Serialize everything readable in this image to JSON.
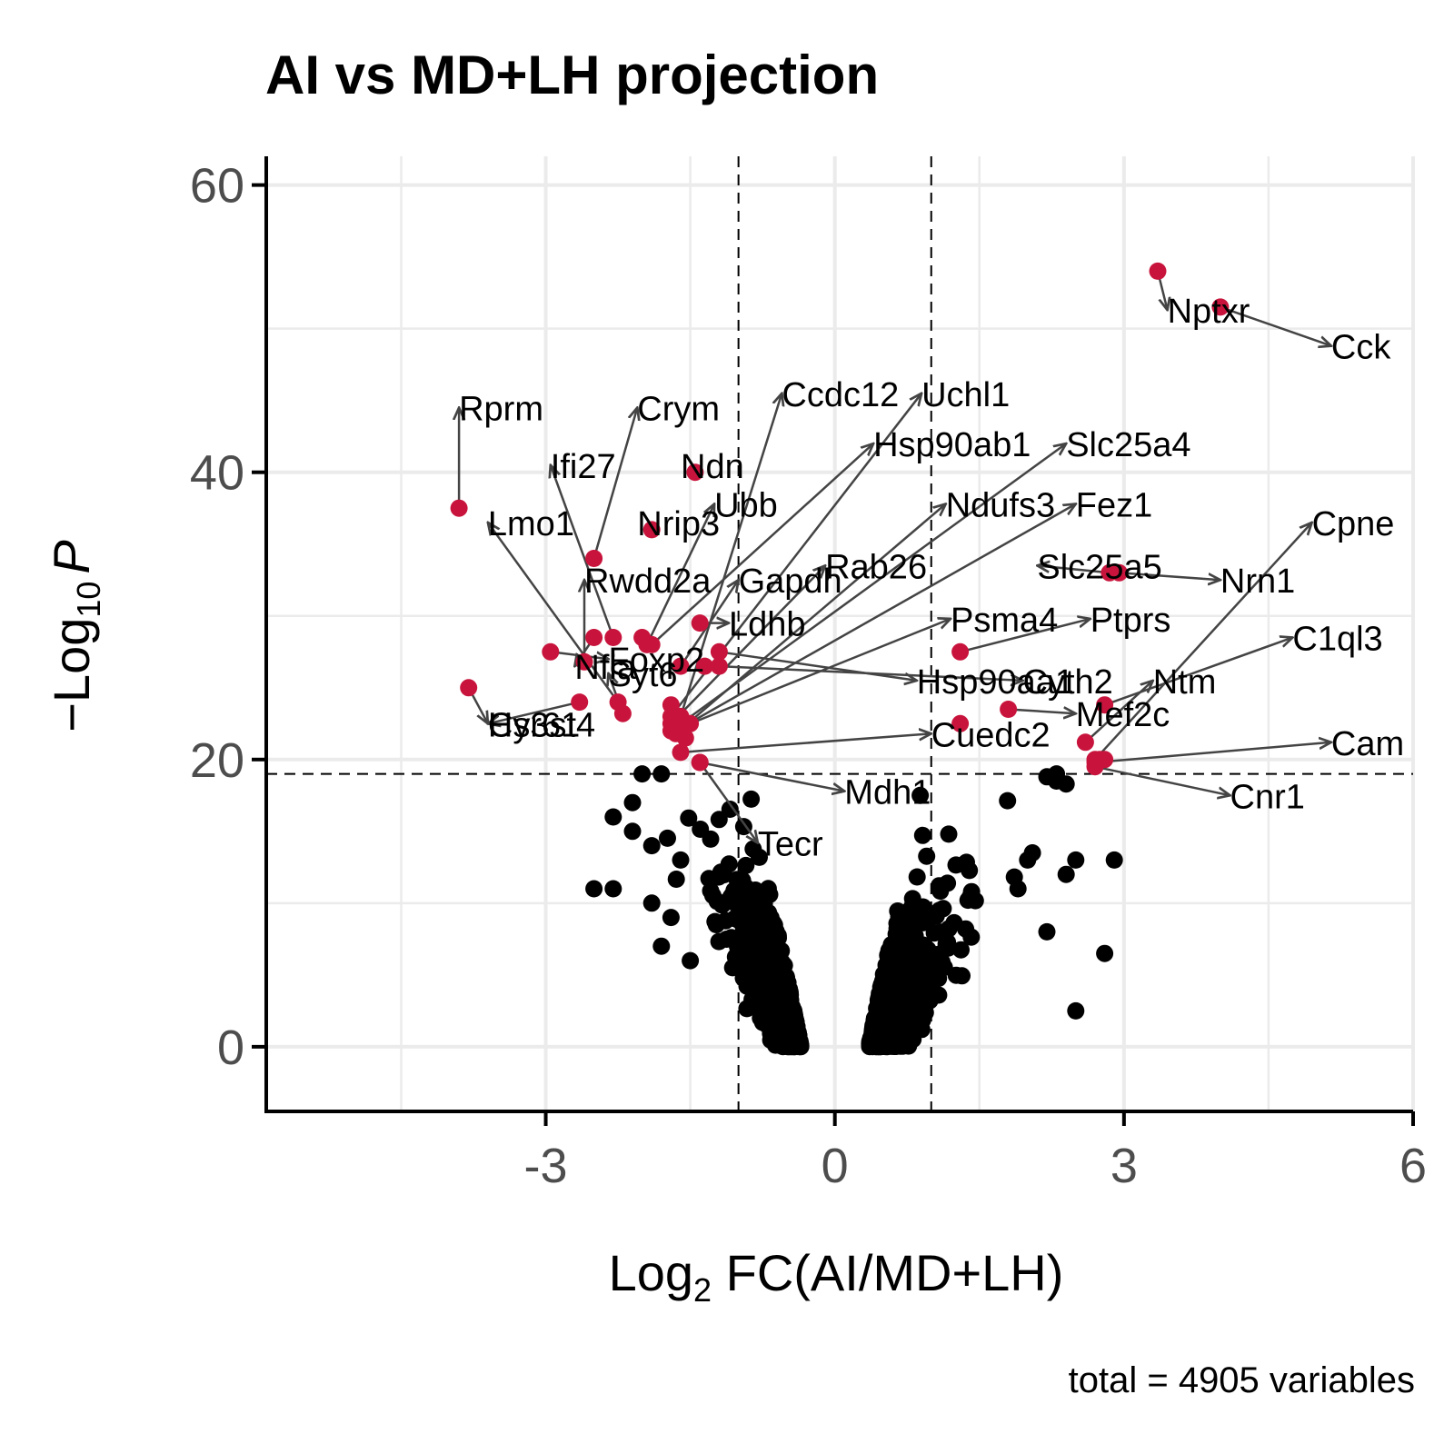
{
  "chart_data": {
    "type": "scatter",
    "subtype": "volcano",
    "title": "AI vs MD+LH projection",
    "xlabel": {
      "main": "Log",
      "sub": "2",
      "rest": " FC(AI/MD+LH)"
    },
    "ylabel": {
      "main": "−Log",
      "sub": "10",
      "rest": "P"
    },
    "caption": "total = 4905 variables",
    "xlim": [
      -5.9,
      6.0
    ],
    "ylim": [
      -4.5,
      62
    ],
    "x_ticks": [
      -3,
      0,
      3,
      6
    ],
    "x_tick_labels": [
      "-3",
      "0",
      "3",
      "6"
    ],
    "y_ticks": [
      0,
      20,
      40,
      60
    ],
    "y_tick_labels": [
      "0",
      "20",
      "40",
      "60"
    ],
    "fc_cutoff": 1.0,
    "p_cutoff": 19.0,
    "significant_color": "#c8143c",
    "nonsignificant_color": "#000000",
    "significant": [
      {
        "gene": "Nptxr",
        "x": 3.35,
        "y": 54.0,
        "lx": 3.45,
        "ly": 51.3
      },
      {
        "gene": "Cck",
        "x": 4.0,
        "y": 51.5,
        "lx": 5.15,
        "ly": 48.8
      },
      {
        "gene": "Rprm",
        "x": -3.9,
        "y": 37.5,
        "lx": -3.9,
        "ly": 44.5
      },
      {
        "gene": "Crym",
        "x": -2.5,
        "y": 34.0,
        "lx": -2.05,
        "ly": 44.5
      },
      {
        "gene": "Ifi27",
        "x": -2.3,
        "y": 28.5,
        "lx": -2.95,
        "ly": 40.5
      },
      {
        "gene": "Ndn",
        "x": -1.45,
        "y": 40.0,
        "lx": -1.6,
        "ly": 40.5
      },
      {
        "gene": "Lmo1",
        "x": -2.25,
        "y": 24.0,
        "lx": -3.6,
        "ly": 36.5
      },
      {
        "gene": "Nrip3",
        "x": -1.9,
        "y": 36.0,
        "lx": -2.05,
        "ly": 36.5
      },
      {
        "gene": "Ubb",
        "x": -1.95,
        "y": 28.0,
        "lx": -1.25,
        "ly": 37.8
      },
      {
        "gene": "Rwdd2a",
        "x": -2.6,
        "y": 26.8,
        "lx": -2.6,
        "ly": 32.5
      },
      {
        "gene": "Gapdh",
        "x": -1.6,
        "y": 26.5,
        "lx": -1.0,
        "ly": 32.5
      },
      {
        "gene": "Rab26",
        "x": -1.7,
        "y": 22.5,
        "lx": -0.1,
        "ly": 33.5
      },
      {
        "gene": "Ccdc12",
        "x": -1.6,
        "y": 23.0,
        "lx": -0.55,
        "ly": 45.5
      },
      {
        "gene": "Uchl1",
        "x": -1.7,
        "y": 23.0,
        "lx": 0.9,
        "ly": 45.5
      },
      {
        "gene": "Hsp90ab1",
        "x": -1.9,
        "y": 28.0,
        "lx": 0.4,
        "ly": 42.0
      },
      {
        "gene": "Slc25a4",
        "x": -1.7,
        "y": 22.0,
        "lx": 2.4,
        "ly": 42.0
      },
      {
        "gene": "Ndufs3",
        "x": -1.65,
        "y": 21.8,
        "lx": 1.15,
        "ly": 37.8
      },
      {
        "gene": "Fez1",
        "x": -1.6,
        "y": 22.2,
        "lx": 2.5,
        "ly": 37.8
      },
      {
        "gene": "Slc25a5",
        "x": 2.85,
        "y": 33.0,
        "lx": 2.1,
        "ly": 33.5
      },
      {
        "gene": "Nrn1",
        "x": 2.95,
        "y": 33.0,
        "lx": 4.0,
        "ly": 32.5
      },
      {
        "gene": "Cpne",
        "x": 2.7,
        "y": 20.0,
        "lx": 4.95,
        "ly": 36.5
      },
      {
        "gene": "Foxp2",
        "x": -2.95,
        "y": 27.5,
        "lx": -2.35,
        "ly": 27.0
      },
      {
        "gene": "Nfia",
        "x": -2.5,
        "y": 28.5,
        "lx": -2.7,
        "ly": 26.5
      },
      {
        "gene": "Ldhb",
        "x": -1.4,
        "y": 29.5,
        "lx": -1.1,
        "ly": 29.5
      },
      {
        "gene": "Psma4",
        "x": -1.5,
        "y": 22.5,
        "lx": 1.2,
        "ly": 29.8
      },
      {
        "gene": "Ptprs",
        "x": 1.3,
        "y": 27.5,
        "lx": 2.65,
        "ly": 29.8
      },
      {
        "gene": "C1ql3",
        "x": 2.8,
        "y": 23.8,
        "lx": 4.75,
        "ly": 28.5
      },
      {
        "gene": "Hs3st4",
        "x": -3.8,
        "y": 25.0,
        "lx": -3.6,
        "ly": 22.5
      },
      {
        "gene": "Syt6",
        "x": -2.2,
        "y": 23.2,
        "lx": -2.35,
        "ly": 26.0
      },
      {
        "gene": "Hsp90aa1",
        "x": -1.2,
        "y": 27.5,
        "lx": 0.85,
        "ly": 25.5
      },
      {
        "gene": "Cyth2",
        "x": -1.2,
        "y": 26.5,
        "lx": 1.95,
        "ly": 25.5
      },
      {
        "gene": "Ntm",
        "x": 2.6,
        "y": 21.2,
        "lx": 3.3,
        "ly": 25.5
      },
      {
        "gene": "Cyr61",
        "x": -2.65,
        "y": 24.0,
        "lx": -3.6,
        "ly": 22.5
      },
      {
        "gene": "Cuedc2",
        "x": -1.6,
        "y": 20.5,
        "lx": 1.0,
        "ly": 21.8
      },
      {
        "gene": "Mef2c",
        "x": 1.8,
        "y": 23.5,
        "lx": 2.5,
        "ly": 23.2
      },
      {
        "gene": "Cam",
        "x": 2.7,
        "y": 19.8,
        "lx": 5.15,
        "ly": 21.2
      },
      {
        "gene": "Cnr1",
        "x": 2.7,
        "y": 19.5,
        "lx": 4.1,
        "ly": 17.5
      },
      {
        "gene": "Mdh1",
        "x": -1.4,
        "y": 19.8,
        "lx": 0.1,
        "ly": 17.8
      },
      {
        "gene": "Tecr",
        "x": -1.4,
        "y": 19.8,
        "lx": -0.8,
        "ly": 14.2
      },
      {
        "gene": "",
        "x": -2.0,
        "y": 28.5
      },
      {
        "gene": "",
        "x": -1.7,
        "y": 23.8
      },
      {
        "gene": "",
        "x": -1.35,
        "y": 26.5
      },
      {
        "gene": "",
        "x": -1.55,
        "y": 21.5
      },
      {
        "gene": "",
        "x": 2.8,
        "y": 20.0
      },
      {
        "gene": "",
        "x": 2.75,
        "y": 20.0
      },
      {
        "gene": "",
        "x": 1.3,
        "y": 22.5
      }
    ],
    "nonsignificant_summary": "approx. 4860 genes below the p cutoff; two clouds centered near log2FC -1.0 and +1.1"
  }
}
